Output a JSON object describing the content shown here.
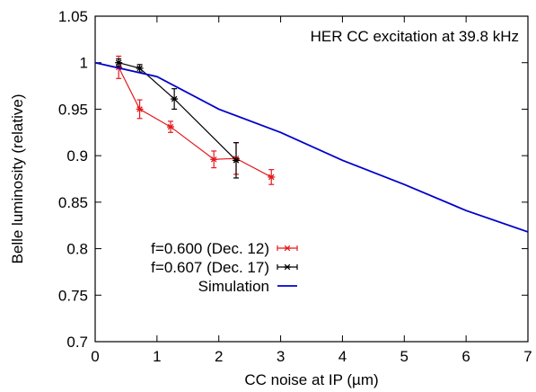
{
  "chart_data": {
    "type": "line",
    "title": "",
    "annotation": "HER CC excitation at 39.8 kHz",
    "xlabel": "CC noise at IP (µm)",
    "ylabel": "Belle luminosity (relative)",
    "xlim": [
      0,
      7
    ],
    "ylim": [
      0.7,
      1.05
    ],
    "x_ticks": [
      0,
      1,
      2,
      3,
      4,
      5,
      6,
      7
    ],
    "y_ticks": [
      0.7,
      0.75,
      0.8,
      0.85,
      0.9,
      0.95,
      1,
      1.05
    ],
    "x_tick_labels": [
      "0",
      "1",
      "2",
      "3",
      "4",
      "5",
      "6",
      "7"
    ],
    "y_tick_labels": [
      "0.7",
      "0.75",
      "0.8",
      "0.85",
      "0.9",
      "0.95",
      "1",
      "1.05"
    ],
    "grid": false,
    "legend_position": "bottom-left",
    "series": [
      {
        "name": "f=0.600 (Dec. 12)",
        "color": "#e41a1c",
        "style": "points-errorbars-line",
        "points": [
          {
            "x": 0.38,
            "y": 0.995,
            "err": 0.012
          },
          {
            "x": 0.72,
            "y": 0.95,
            "err": 0.01
          },
          {
            "x": 1.22,
            "y": 0.931,
            "err": 0.006
          },
          {
            "x": 1.92,
            "y": 0.896,
            "err": 0.009
          },
          {
            "x": 2.28,
            "y": 0.897,
            "err": 0.017
          },
          {
            "x": 2.85,
            "y": 0.877,
            "err": 0.008
          }
        ]
      },
      {
        "name": "f=0.607 (Dec. 17)",
        "color": "#000000",
        "style": "points-errorbars-line",
        "points": [
          {
            "x": 0.38,
            "y": 1.0,
            "err": 0.004
          },
          {
            "x": 0.72,
            "y": 0.994,
            "err": 0.004
          },
          {
            "x": 1.28,
            "y": 0.961,
            "err": 0.011
          },
          {
            "x": 2.28,
            "y": 0.895,
            "err": 0.019
          }
        ]
      },
      {
        "name": "Simulation",
        "color": "#0000cc",
        "style": "line",
        "points": [
          {
            "x": 0,
            "y": 1.0
          },
          {
            "x": 1.0,
            "y": 0.985
          },
          {
            "x": 2.0,
            "y": 0.95
          },
          {
            "x": 3.0,
            "y": 0.925
          },
          {
            "x": 4.0,
            "y": 0.895
          },
          {
            "x": 5.0,
            "y": 0.869
          },
          {
            "x": 6.0,
            "y": 0.841
          },
          {
            "x": 7.0,
            "y": 0.818
          }
        ]
      }
    ]
  }
}
